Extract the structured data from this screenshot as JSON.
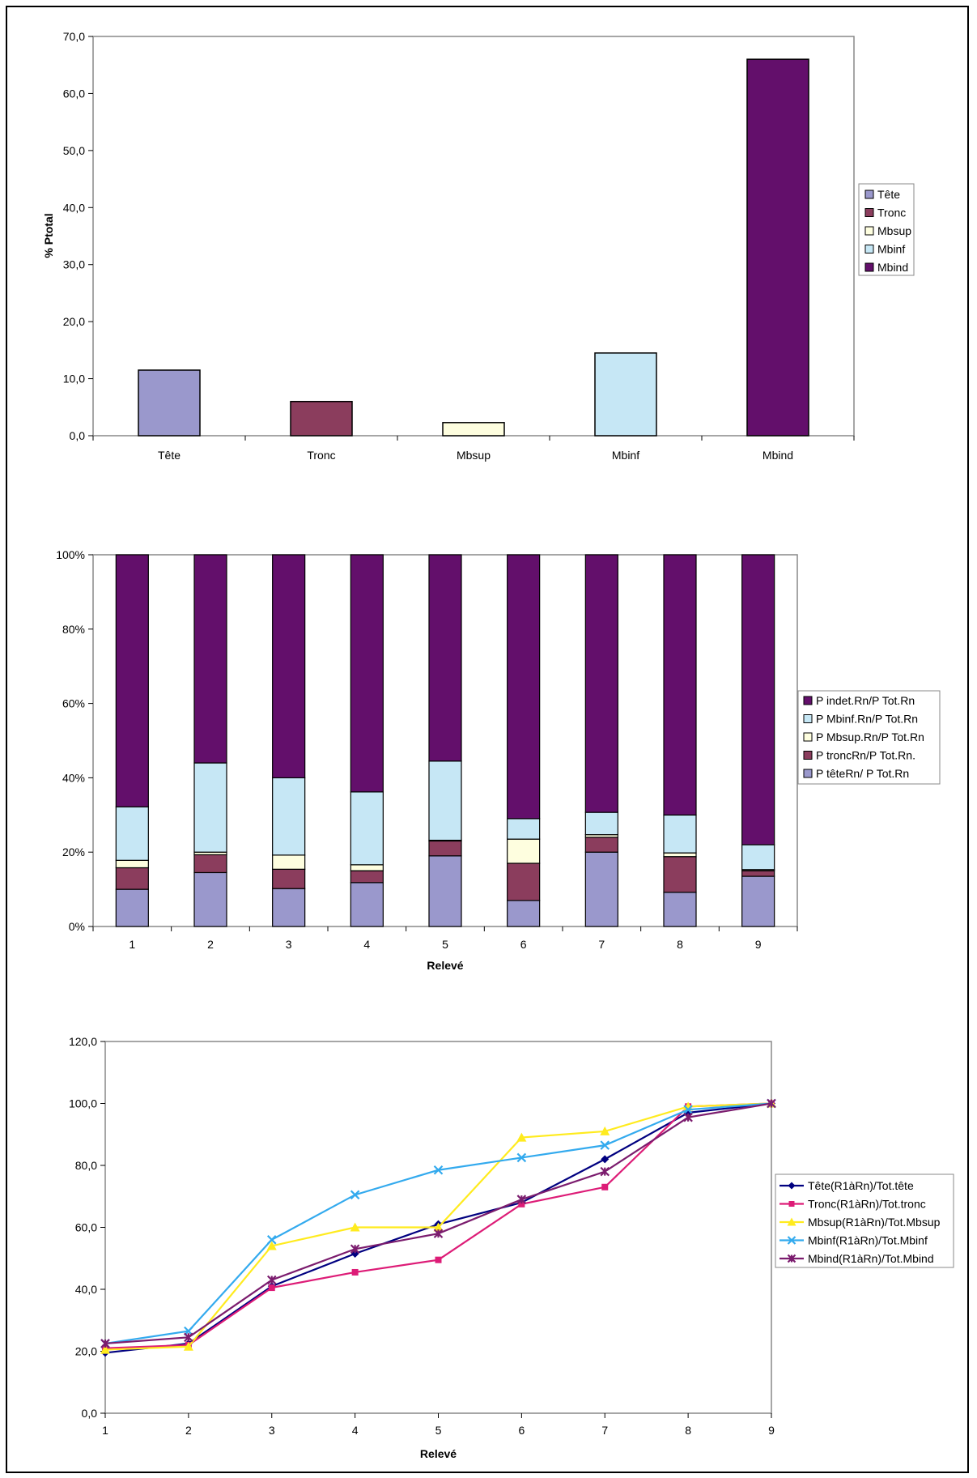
{
  "charts": [
    {
      "type": "bar",
      "ylabel": "% Ptotal",
      "ylim": [
        0,
        70
      ],
      "yticks": [
        "0,0",
        "10,0",
        "20,0",
        "30,0",
        "40,0",
        "50,0",
        "60,0",
        "70,0"
      ],
      "categories": [
        "Tête",
        "Tronc",
        "Mbsup",
        "Mbinf",
        "Mbind"
      ],
      "values": [
        11.5,
        6.0,
        2.3,
        14.5,
        66.0
      ],
      "colors": [
        "#9a98cc",
        "#8b3d5d",
        "#fefedf",
        "#c6e7f5",
        "#630f6b"
      ],
      "legend": [
        "Tête",
        "Tronc",
        "Mbsup",
        "Mbinf",
        "Mbind"
      ],
      "legend_position": "right",
      "grid": false
    },
    {
      "type": "bar",
      "stacked": "percent",
      "xlabel": "Relevé",
      "categories": [
        "1",
        "2",
        "3",
        "4",
        "5",
        "6",
        "7",
        "8",
        "9"
      ],
      "yticks": [
        "0%",
        "20%",
        "40%",
        "60%",
        "80%",
        "100%"
      ],
      "series": [
        {
          "name": "P têteRn/ P Tot.Rn",
          "color": "#9a98cc",
          "values": [
            10,
            14.5,
            10.2,
            11.8,
            19,
            7,
            20,
            9.2,
            13.5
          ]
        },
        {
          "name": "P troncRn/P Tot.Rn.",
          "color": "#8b3d5d",
          "values": [
            5.8,
            4.8,
            5.2,
            3.2,
            4,
            10,
            4,
            9.6,
            1.5
          ]
        },
        {
          "name": "P Mbsup.Rn/P Tot.Rn",
          "color": "#fefedf",
          "values": [
            2,
            0.7,
            3.8,
            1.6,
            0.2,
            6.5,
            0.7,
            1,
            0.3
          ]
        },
        {
          "name": "P Mbinf.Rn/P Tot.Rn",
          "color": "#c6e7f5",
          "values": [
            14.4,
            24,
            20.8,
            19.6,
            21.3,
            5.5,
            6,
            10.2,
            6.7
          ]
        },
        {
          "name": "P indet.Rn/P Tot.Rn",
          "color": "#630f6b",
          "values": [
            67.8,
            56,
            60,
            63.8,
            55.5,
            71,
            69.3,
            70,
            78
          ]
        }
      ],
      "legend_position": "right",
      "grid": false
    },
    {
      "type": "line",
      "xlabel": "Relevé",
      "ylim": [
        0,
        120
      ],
      "yticks": [
        "0,0",
        "20,0",
        "40,0",
        "60,0",
        "80,0",
        "100,0",
        "120,0"
      ],
      "x": [
        "1",
        "2",
        "3",
        "4",
        "5",
        "6",
        "7",
        "8",
        "9"
      ],
      "series": [
        {
          "name": "Tête(R1àRn)/Tot.tête",
          "color": "#000080",
          "marker": "diamond",
          "values": [
            19.5,
            22.5,
            41,
            51.5,
            61,
            68,
            82,
            97,
            100
          ]
        },
        {
          "name": "Tronc(R1àRn)/Tot.tronc",
          "color": "#dd1c77",
          "marker": "square",
          "values": [
            21,
            22,
            40.5,
            45.5,
            49.5,
            67.5,
            73,
            99,
            100
          ]
        },
        {
          "name": "Mbsup(R1àRn)/Tot.Mbsup",
          "color": "#ffeb1e",
          "marker": "triangle",
          "values": [
            20.5,
            21.5,
            54,
            60,
            60,
            89,
            91,
            99,
            100
          ]
        },
        {
          "name": "Mbinf(R1àRn)/Tot.Mbinf",
          "color": "#33aaee",
          "marker": "x",
          "values": [
            22.5,
            26.5,
            56,
            70.5,
            78.5,
            82.5,
            86.5,
            98,
            100
          ]
        },
        {
          "name": "Mbind(R1àRn)/Tot.Mbind",
          "color": "#7b1c6e",
          "marker": "star",
          "values": [
            22.5,
            24.5,
            43,
            53,
            58,
            69,
            78,
            95.5,
            100
          ]
        }
      ],
      "legend_position": "right",
      "grid": false
    }
  ]
}
